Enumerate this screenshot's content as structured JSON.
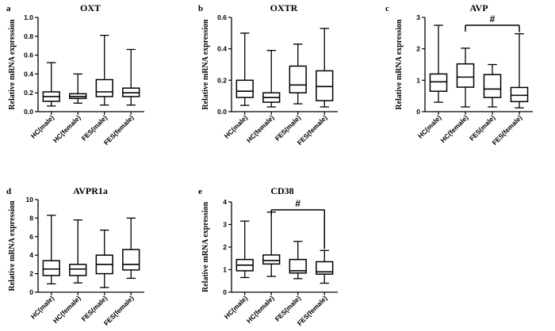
{
  "chart_data": [
    {
      "type": "box",
      "panel_label": "a",
      "title": "OXT",
      "ylabel": "Relative mRNA expression",
      "ylim": [
        0,
        1.0
      ],
      "yticks": [
        "0.0",
        "0.2",
        "0.4",
        "0.6",
        "0.8",
        "1.0"
      ],
      "categories": [
        "HC(male)",
        "HC(female)",
        "FES(male)",
        "FES(female)"
      ],
      "boxes": [
        {
          "min": 0.06,
          "q1": 0.11,
          "median": 0.16,
          "q3": 0.21,
          "max": 0.52
        },
        {
          "min": 0.09,
          "q1": 0.14,
          "median": 0.16,
          "q3": 0.19,
          "max": 0.4
        },
        {
          "min": 0.07,
          "q1": 0.16,
          "median": 0.21,
          "q3": 0.34,
          "max": 0.81
        },
        {
          "min": 0.07,
          "q1": 0.16,
          "median": 0.2,
          "q3": 0.25,
          "max": 0.66
        }
      ],
      "significance": null
    },
    {
      "type": "box",
      "panel_label": "b",
      "title": "OXTR",
      "ylabel": "Relative mRNA expression",
      "ylim": [
        0,
        0.6
      ],
      "yticks": [
        "0.0",
        "0.2",
        "0.4",
        "0.6"
      ],
      "categories": [
        "HC(male)",
        "HC(female)",
        "FES(male)",
        "FES(female)"
      ],
      "boxes": [
        {
          "min": 0.04,
          "q1": 0.09,
          "median": 0.13,
          "q3": 0.2,
          "max": 0.5
        },
        {
          "min": 0.03,
          "q1": 0.06,
          "median": 0.09,
          "q3": 0.12,
          "max": 0.39
        },
        {
          "min": 0.05,
          "q1": 0.12,
          "median": 0.17,
          "q3": 0.29,
          "max": 0.43
        },
        {
          "min": 0.03,
          "q1": 0.07,
          "median": 0.16,
          "q3": 0.26,
          "max": 0.53
        }
      ],
      "significance": null
    },
    {
      "type": "box",
      "panel_label": "c",
      "title": "AVP",
      "ylabel": "Relative mRNA expression",
      "ylim": [
        0,
        3
      ],
      "yticks": [
        "0",
        "1",
        "2",
        "3"
      ],
      "categories": [
        "HC(male)",
        "HC(female)",
        "FES(male)",
        "FES(female)"
      ],
      "boxes": [
        {
          "min": 0.3,
          "q1": 0.65,
          "median": 0.95,
          "q3": 1.2,
          "max": 2.75
        },
        {
          "min": 0.15,
          "q1": 0.78,
          "median": 1.1,
          "q3": 1.52,
          "max": 2.02
        },
        {
          "min": 0.15,
          "q1": 0.45,
          "median": 0.72,
          "q3": 1.18,
          "max": 1.5
        },
        {
          "min": 0.12,
          "q1": 0.32,
          "median": 0.52,
          "q3": 0.77,
          "max": 2.48
        }
      ],
      "significance": {
        "from": 1,
        "to": 3,
        "label": "#",
        "level": 2.75
      }
    },
    {
      "type": "box",
      "panel_label": "d",
      "title": "AVPR1a",
      "ylabel": "Relative mRNA expression",
      "ylim": [
        0,
        10
      ],
      "yticks": [
        "0",
        "2",
        "4",
        "6",
        "8",
        "10"
      ],
      "categories": [
        "HC(male)",
        "HC(female)",
        "FES(male)",
        "FES(female)"
      ],
      "boxes": [
        {
          "min": 0.9,
          "q1": 1.8,
          "median": 2.5,
          "q3": 3.4,
          "max": 8.3
        },
        {
          "min": 1.0,
          "q1": 1.8,
          "median": 2.5,
          "q3": 3.0,
          "max": 7.8
        },
        {
          "min": 0.5,
          "q1": 2.0,
          "median": 3.0,
          "q3": 4.0,
          "max": 6.7
        },
        {
          "min": 1.5,
          "q1": 2.4,
          "median": 3.0,
          "q3": 4.6,
          "max": 8.0
        }
      ],
      "significance": null
    },
    {
      "type": "box",
      "panel_label": "e",
      "title": "CD38",
      "ylabel": "Relative mRNA expression",
      "ylim": [
        0,
        4
      ],
      "yticks": [
        "0",
        "1",
        "2",
        "3",
        "4"
      ],
      "categories": [
        "HC(male)",
        "HC(female)",
        "FES(male)",
        "FES(female)"
      ],
      "boxes": [
        {
          "min": 0.65,
          "q1": 0.95,
          "median": 1.2,
          "q3": 1.45,
          "max": 3.15
        },
        {
          "min": 0.7,
          "q1": 1.25,
          "median": 1.4,
          "q3": 1.65,
          "max": 3.55
        },
        {
          "min": 0.6,
          "q1": 0.85,
          "median": 0.95,
          "q3": 1.45,
          "max": 2.25
        },
        {
          "min": 0.4,
          "q1": 0.8,
          "median": 0.9,
          "q3": 1.35,
          "max": 1.85
        }
      ],
      "significance": {
        "from": 1,
        "to": 3,
        "label": "#",
        "level": 3.65
      }
    }
  ]
}
